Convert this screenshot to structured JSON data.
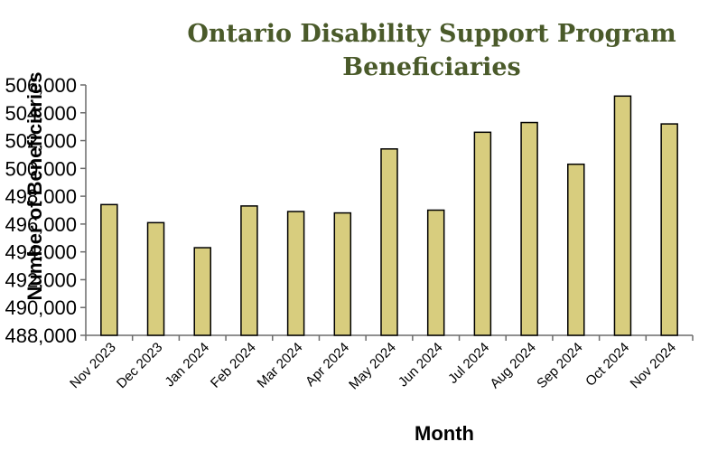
{
  "chart_data": {
    "type": "bar",
    "title_lines": [
      "Ontario Disability Support Program",
      "Beneficiaries"
    ],
    "xlabel": "Month",
    "ylabel": "Number of Beneficiaries",
    "categories": [
      "Nov 2023",
      "Dec 2023",
      "Jan 2024",
      "Feb 2024",
      "Mar 2024",
      "Apr 2024",
      "May 2024",
      "Jun 2024",
      "Jul 2024",
      "Aug 2024",
      "Sep 2024",
      "Oct 2024",
      "Nov 2024"
    ],
    "values": [
      497400,
      496100,
      494300,
      497300,
      496900,
      496800,
      501400,
      497000,
      502600,
      503300,
      500300,
      505200,
      503200
    ],
    "ylim": [
      488000,
      506000
    ],
    "yticks": [
      488000,
      490000,
      492000,
      494000,
      496000,
      498000,
      500000,
      502000,
      504000,
      506000
    ],
    "ytick_labels": [
      "488,000",
      "490,000",
      "492,000",
      "494,000",
      "496,000",
      "498,000",
      "500,000",
      "502,000",
      "504,000",
      "506,000"
    ],
    "grid": false,
    "legend": "none",
    "colors": {
      "bar_fill": "#d8cd7e",
      "bar_stroke": "#000000",
      "title": "#4a5a2a",
      "axis": "#6b6b6b"
    }
  }
}
